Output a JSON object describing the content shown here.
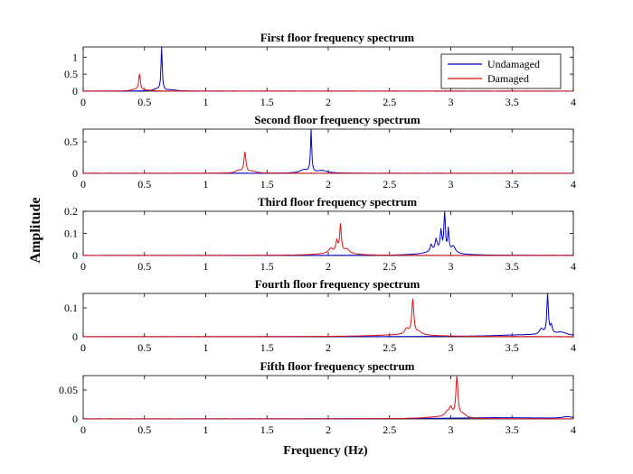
{
  "figure": {
    "xlabel": "Frequency (Hz)",
    "ylabel": "Amplitude",
    "legend": {
      "placement": "top-right of first panel",
      "entries": [
        {
          "name": "Undamaged",
          "color": "#0000cc"
        },
        {
          "name": "Damaged",
          "color": "#dd1111"
        }
      ]
    }
  },
  "chart_data": [
    {
      "type": "line",
      "title": "First floor frequency spectrum",
      "xlim": [
        0,
        4
      ],
      "ylim": [
        0,
        1.3
      ],
      "xticks": [
        "0",
        "0.5",
        "1",
        "1.5",
        "2",
        "2.5",
        "3",
        "3.5",
        "4"
      ],
      "yticks": [
        {
          "v": 0,
          "label": "0"
        },
        {
          "v": 0.5,
          "label": "0.5"
        },
        {
          "v": 1,
          "label": "1"
        }
      ],
      "series": [
        {
          "name": "Undamaged",
          "color": "#0000cc",
          "peaks": [
            {
              "f": 0.64,
              "a": 1.25,
              "w": 0.006
            },
            {
              "f": 0.6,
              "a": 0.05,
              "w": 0.04
            },
            {
              "f": 0.72,
              "a": 0.03,
              "w": 0.05
            }
          ]
        },
        {
          "name": "Damaged",
          "color": "#dd1111",
          "peaks": [
            {
              "f": 0.46,
              "a": 0.48,
              "w": 0.008
            },
            {
              "f": 0.42,
              "a": 0.04,
              "w": 0.04
            },
            {
              "f": 0.52,
              "a": 0.02,
              "w": 0.05
            }
          ]
        }
      ]
    },
    {
      "type": "line",
      "title": "Second floor frequency spectrum",
      "xlim": [
        0,
        4
      ],
      "ylim": [
        0,
        0.7
      ],
      "xticks": [
        "0",
        "0.5",
        "1",
        "1.5",
        "2",
        "2.5",
        "3",
        "3.5",
        "4"
      ],
      "yticks": [
        {
          "v": 0,
          "label": "0"
        },
        {
          "v": 0.5,
          "label": "0.5"
        }
      ],
      "series": [
        {
          "name": "Undamaged",
          "color": "#0000cc",
          "peaks": [
            {
              "f": 1.86,
              "a": 0.67,
              "w": 0.006
            },
            {
              "f": 1.8,
              "a": 0.05,
              "w": 0.04
            },
            {
              "f": 1.95,
              "a": 0.04,
              "w": 0.05
            }
          ]
        },
        {
          "name": "Damaged",
          "color": "#dd1111",
          "peaks": [
            {
              "f": 1.32,
              "a": 0.32,
              "w": 0.009
            },
            {
              "f": 1.27,
              "a": 0.04,
              "w": 0.03
            },
            {
              "f": 1.38,
              "a": 0.03,
              "w": 0.04
            }
          ]
        }
      ]
    },
    {
      "type": "line",
      "title": "Third floor frequency spectrum",
      "xlim": [
        0,
        4
      ],
      "ylim": [
        0,
        0.2
      ],
      "xticks": [
        "0",
        "0.5",
        "1",
        "1.5",
        "2",
        "2.5",
        "3",
        "3.5",
        "4"
      ],
      "yticks": [
        {
          "v": 0,
          "label": "0"
        },
        {
          "v": 0.1,
          "label": "0.1"
        },
        {
          "v": 0.2,
          "label": "0.2"
        }
      ],
      "series": [
        {
          "name": "Undamaged",
          "color": "#0000cc",
          "peaks": [
            {
              "f": 2.95,
              "a": 0.2,
              "w": 0.006
            },
            {
              "f": 2.92,
              "a": 0.09,
              "w": 0.008
            },
            {
              "f": 2.98,
              "a": 0.1,
              "w": 0.006
            },
            {
              "f": 2.88,
              "a": 0.05,
              "w": 0.01
            },
            {
              "f": 2.84,
              "a": 0.03,
              "w": 0.01
            },
            {
              "f": 3.02,
              "a": 0.03,
              "w": 0.02
            },
            {
              "f": 2.9,
              "a": 0.02,
              "w": 0.12
            }
          ]
        },
        {
          "name": "Damaged",
          "color": "#dd1111",
          "peaks": [
            {
              "f": 2.1,
              "a": 0.125,
              "w": 0.008
            },
            {
              "f": 2.07,
              "a": 0.05,
              "w": 0.01
            },
            {
              "f": 2.02,
              "a": 0.02,
              "w": 0.02
            },
            {
              "f": 2.15,
              "a": 0.02,
              "w": 0.03
            },
            {
              "f": 2.05,
              "a": 0.01,
              "w": 0.15
            }
          ]
        }
      ]
    },
    {
      "type": "line",
      "title": "Fourth floor frequency spectrum",
      "xlim": [
        0,
        4
      ],
      "ylim": [
        0,
        0.15
      ],
      "xticks": [
        "0",
        "0.5",
        "1",
        "1.5",
        "2",
        "2.5",
        "3",
        "3.5",
        "4"
      ],
      "yticks": [
        {
          "v": 0,
          "label": "0"
        },
        {
          "v": 0.1,
          "label": "0.1"
        }
      ],
      "series": [
        {
          "name": "Undamaged",
          "color": "#0000cc",
          "peaks": [
            {
              "f": 3.79,
              "a": 0.145,
              "w": 0.007
            },
            {
              "f": 3.82,
              "a": 0.03,
              "w": 0.01
            },
            {
              "f": 3.74,
              "a": 0.02,
              "w": 0.02
            },
            {
              "f": 3.9,
              "a": 0.012,
              "w": 0.06
            },
            {
              "f": 3.6,
              "a": 0.006,
              "w": 0.3
            }
          ]
        },
        {
          "name": "Damaged",
          "color": "#dd1111",
          "peaks": [
            {
              "f": 2.69,
              "a": 0.12,
              "w": 0.01
            },
            {
              "f": 2.64,
              "a": 0.02,
              "w": 0.02
            },
            {
              "f": 2.74,
              "a": 0.01,
              "w": 0.03
            },
            {
              "f": 2.6,
              "a": 0.006,
              "w": 0.3
            }
          ]
        }
      ]
    },
    {
      "type": "line",
      "title": "Fifth floor frequency spectrum",
      "xlim": [
        0,
        4
      ],
      "ylim": [
        0,
        0.075
      ],
      "xticks": [
        "0",
        "0.5",
        "1",
        "1.5",
        "2",
        "2.5",
        "3",
        "3.5",
        "4"
      ],
      "yticks": [
        {
          "v": 0,
          "label": "0"
        },
        {
          "v": 0.05,
          "label": "0.05"
        }
      ],
      "series": [
        {
          "name": "Undamaged",
          "color": "#0000cc",
          "peaks": [
            {
              "f": 3.4,
              "a": 0.002,
              "w": 0.5
            },
            {
              "f": 3.95,
              "a": 0.003,
              "w": 0.05
            }
          ]
        },
        {
          "name": "Damaged",
          "color": "#dd1111",
          "peaks": [
            {
              "f": 3.05,
              "a": 0.071,
              "w": 0.01
            },
            {
              "f": 3.0,
              "a": 0.015,
              "w": 0.015
            },
            {
              "f": 2.97,
              "a": 0.008,
              "w": 0.02
            },
            {
              "f": 3.1,
              "a": 0.006,
              "w": 0.03
            },
            {
              "f": 2.9,
              "a": 0.003,
              "w": 0.15
            }
          ]
        }
      ]
    }
  ]
}
